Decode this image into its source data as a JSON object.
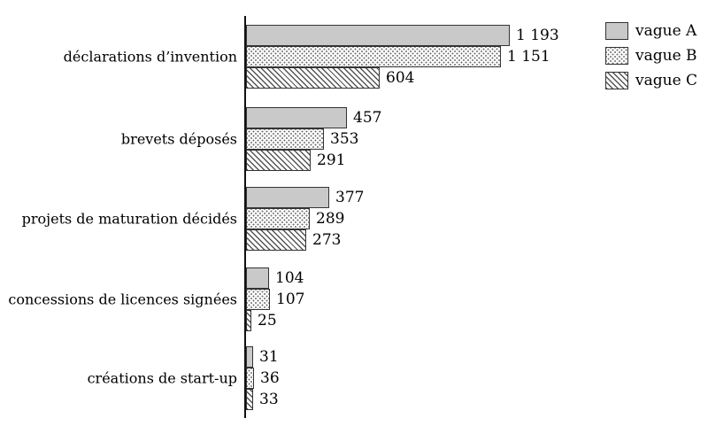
{
  "chart_data": {
    "type": "bar",
    "orientation": "horizontal",
    "title": "",
    "xlabel": "",
    "ylabel": "",
    "xlim": [
      0,
      1200
    ],
    "grid": false,
    "legend_position": "top-right",
    "categories": [
      "déclarations d’invention",
      "brevets déposés",
      "projets de maturation décidés",
      "concessions de licences signées",
      "créations de start-up"
    ],
    "series": [
      {
        "name": "vague A",
        "pattern": "solid-gray",
        "values": [
          1193,
          457,
          377,
          104,
          31
        ],
        "labels": [
          "1 193",
          "457",
          "377",
          "104",
          "31"
        ]
      },
      {
        "name": "vague B",
        "pattern": "dotted",
        "values": [
          1151,
          353,
          289,
          107,
          36
        ],
        "labels": [
          "1 151",
          "353",
          "289",
          "107",
          "36"
        ]
      },
      {
        "name": "vague C",
        "pattern": "hatched",
        "values": [
          604,
          291,
          273,
          25,
          33
        ],
        "labels": [
          "604",
          "291",
          "273",
          "25",
          "33"
        ]
      }
    ]
  },
  "colors": {
    "bar_fill": "#c9c9c9",
    "bar_border": "#333333",
    "hatch_ink": "#555555",
    "dot_ink": "#6e6e6e",
    "axis": "#111111",
    "text": "#000000",
    "background": "#ffffff"
  }
}
